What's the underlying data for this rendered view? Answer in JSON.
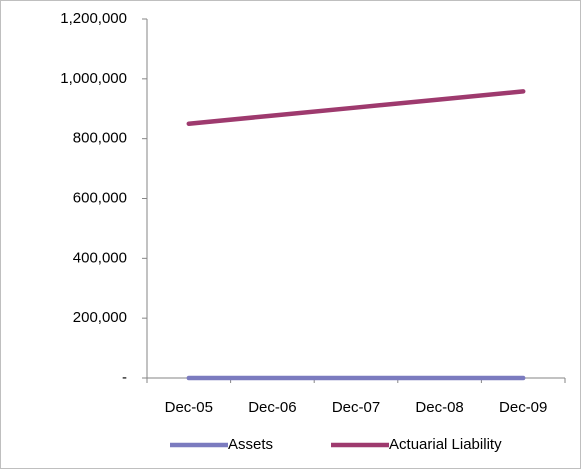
{
  "chart_data": {
    "type": "line",
    "categories": [
      "Dec-05",
      "Dec-06",
      "Dec-07",
      "Dec-08",
      "Dec-09"
    ],
    "series": [
      {
        "name": "Assets",
        "color": "#7b7bbf",
        "values": [
          0,
          0,
          0,
          0,
          0
        ]
      },
      {
        "name": "Actuarial Liability",
        "color": "#9e3a6e",
        "values": [
          850000,
          877000,
          904000,
          931000,
          958000
        ]
      }
    ],
    "ylim": [
      0,
      1200000
    ],
    "yticks": [
      {
        "value": 0,
        "label": "-"
      },
      {
        "value": 200000,
        "label": "200,000"
      },
      {
        "value": 400000,
        "label": "400,000"
      },
      {
        "value": 600000,
        "label": "600,000"
      },
      {
        "value": 800000,
        "label": "800,000"
      },
      {
        "value": 1000000,
        "label": "1,000,000"
      },
      {
        "value": 1200000,
        "label": "1,200,000"
      }
    ],
    "grid": false,
    "legend": "bottom"
  }
}
